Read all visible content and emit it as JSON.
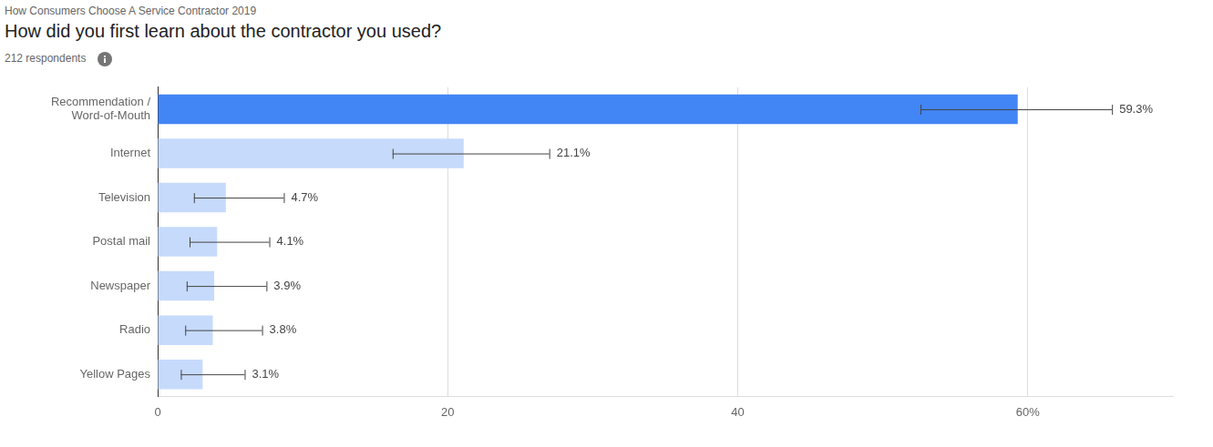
{
  "chart_data": {
    "type": "bar",
    "orientation": "horizontal",
    "subtitle": "How Consumers Choose A Service Contractor 2019",
    "title": "How did you first learn about the contractor you used?",
    "annotations": [
      "212 respondents"
    ],
    "categories": [
      "Recommendation / Word-of-Mouth",
      "Internet",
      "Television",
      "Postal mail",
      "Newspaper",
      "Radio",
      "Yellow Pages"
    ],
    "values": [
      59.3,
      21.1,
      4.7,
      4.1,
      3.9,
      3.8,
      3.1
    ],
    "value_labels": [
      "59.3%",
      "21.1%",
      "4.7%",
      "4.1%",
      "3.9%",
      "3.8%",
      "3.1%"
    ],
    "error_low": [
      52.6,
      16.2,
      2.5,
      2.2,
      2.0,
      1.9,
      1.6
    ],
    "error_high": [
      65.8,
      27.0,
      8.7,
      7.7,
      7.5,
      7.2,
      6.0
    ],
    "colors": [
      "#4285f4",
      "#c6dafc",
      "#c6dafc",
      "#c6dafc",
      "#c6dafc",
      "#c6dafc",
      "#c6dafc"
    ],
    "xlim": [
      0,
      70
    ],
    "xticks": [
      0,
      20,
      40,
      {
        "value": 60,
        "label": "60%"
      }
    ],
    "grid": true,
    "data_labels": true
  }
}
